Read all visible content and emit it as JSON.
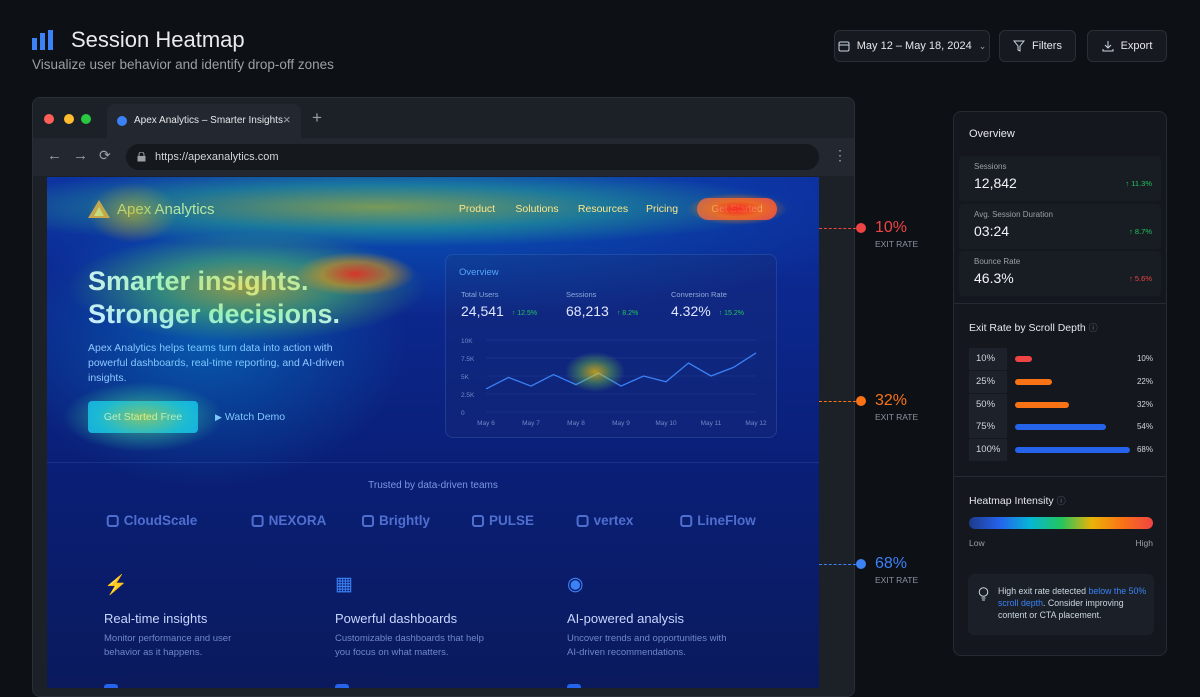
{
  "header": {
    "title": "Session Heatmap",
    "subtitle": "Visualize user behavior and identify drop-off zones",
    "date_range": "May 12 – May 18, 2024",
    "filters": "Filters",
    "export": "Export"
  },
  "browser": {
    "tab_title": "Apex Analytics – Smarter Insights",
    "url": "https://apexanalytics.com"
  },
  "site": {
    "brand": "Apex Analytics",
    "nav": [
      "Product",
      "Solutions",
      "Resources",
      "Pricing"
    ],
    "nav_cta": "Get Started",
    "hero_title": [
      "Smarter insights.",
      "Stronger decisions."
    ],
    "hero_text": "Apex Analytics helps teams turn data into action with powerful dashboards, real-time reporting, and AI-driven insights.",
    "primary_button": "Get Started Free",
    "secondary_button": "Watch Demo",
    "dashboard": {
      "title": "Overview",
      "metrics": [
        {
          "label": "Total Users",
          "value": "24,541",
          "change": "↑ 12.5%"
        },
        {
          "label": "Sessions",
          "value": "68,213",
          "change": "↑ 8.2%"
        },
        {
          "label": "Conversion Rate",
          "value": "4.32%",
          "change": "↑ 15.2%"
        }
      ],
      "chart_data": {
        "type": "line",
        "categories": [
          "May 6",
          null,
          "May 7",
          null,
          "May 8",
          null,
          "May 9",
          null,
          "May 10",
          null,
          "May 11",
          null,
          "May 12"
        ],
        "values": [
          3200,
          4800,
          3600,
          5200,
          3800,
          5400,
          3600,
          5000,
          4200,
          6800,
          5000,
          6200,
          8200
        ],
        "color": "#3b82f6",
        "ylim": [
          0,
          10000
        ],
        "yticks": [
          {
            "value": 10000,
            "label": "10K"
          },
          {
            "value": 7500,
            "label": "7.5K"
          },
          {
            "value": 5000,
            "label": "5K"
          },
          {
            "value": 2500,
            "label": "2.5K"
          },
          0
        ]
      }
    },
    "trusted_title": "Trusted by data-driven teams",
    "logos": [
      "CloudScale",
      "NEXORA",
      "Brightly",
      "PULSE",
      "vertex",
      "LineFlow"
    ],
    "features": [
      {
        "title": "Real-time insights",
        "text": "Monitor performance and user behavior as it happens."
      },
      {
        "title": "Powerful dashboards",
        "text": "Customizable dashboards that help you focus on what matters."
      },
      {
        "title": "AI-powered analysis",
        "text": "Uncover trends and opportunities with AI-driven recommendations."
      }
    ]
  },
  "exit_markers": [
    {
      "value": "10%",
      "label": "EXIT RATE",
      "color": "#ef4444"
    },
    {
      "value": "32%",
      "label": "EXIT RATE",
      "color": "#f97316"
    },
    {
      "value": "68%",
      "label": "EXIT RATE",
      "color": "#3b82f6"
    }
  ],
  "panel": {
    "overview_title": "Overview",
    "stats": [
      {
        "label": "Sessions",
        "value": "12,842",
        "change": "↑ 11.3%",
        "color": "#22c55e"
      },
      {
        "label": "Avg. Session Duration",
        "value": "03:24",
        "change": "↑ 8.7%",
        "color": "#22c55e"
      },
      {
        "label": "Bounce Rate",
        "value": "46.3%",
        "change": "↑ 5.6%",
        "color": "#ef4444"
      }
    ],
    "scroll_depth": {
      "title": "Exit Rate by Scroll Depth",
      "categories": [
        "10%",
        "25%",
        "50%",
        "75%",
        "100%"
      ],
      "values": [
        10,
        22,
        32,
        54,
        68
      ],
      "value_labels": [
        "10%",
        "22%",
        "32%",
        "54%",
        "68%"
      ],
      "colors": [
        "#ef4444",
        "#f97316",
        "#f97316",
        "#2563eb",
        "#2563eb"
      ]
    },
    "intensity": {
      "title": "Heatmap Intensity",
      "low": "Low",
      "high": "High"
    },
    "insight": [
      "High exit rate detected ",
      "below the 50% scroll depth",
      ". Consider improving content or CTA placement."
    ]
  }
}
